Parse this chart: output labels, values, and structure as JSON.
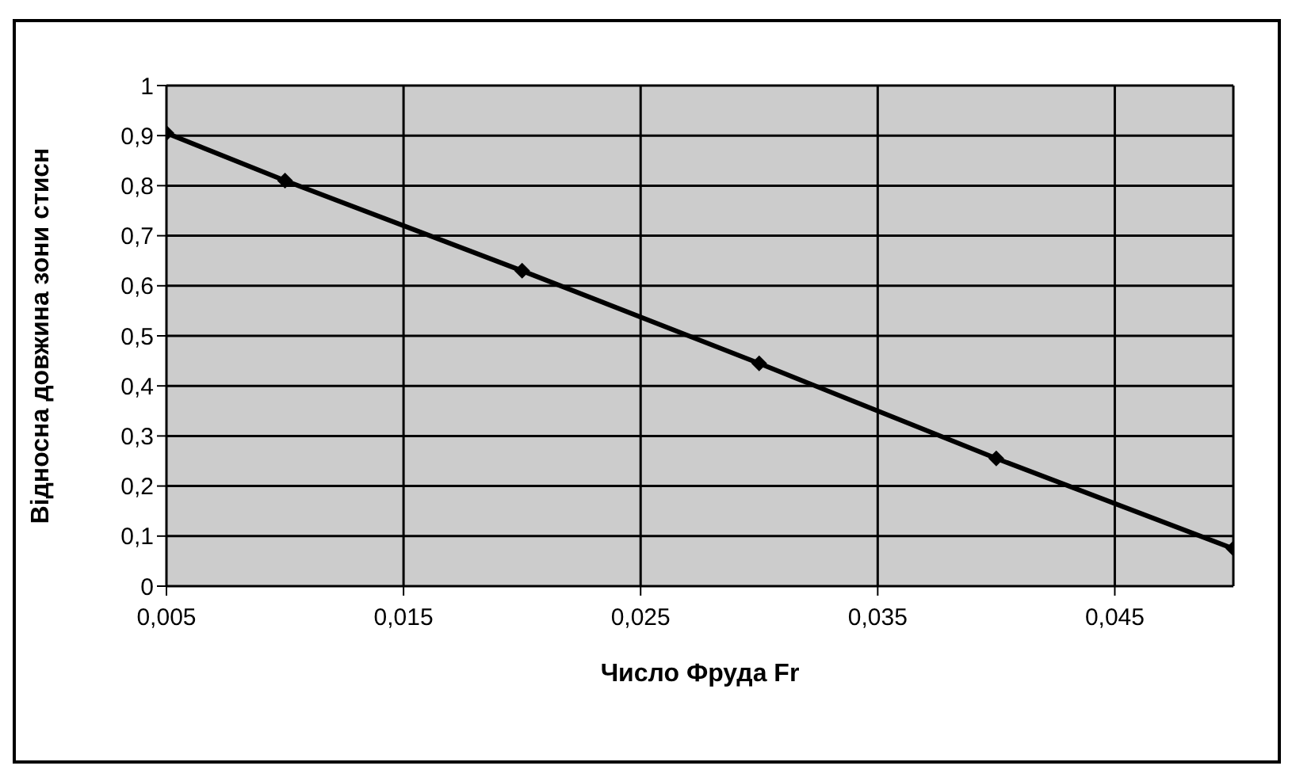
{
  "chart_data": {
    "type": "line",
    "xlabel": "Число Фруда Fr",
    "ylabel": "Відносна довжина зони стисн",
    "x": [
      0.005,
      0.01,
      0.02,
      0.03,
      0.04,
      0.05
    ],
    "series": [
      {
        "color": "#000000",
        "values": [
          0.905,
          0.81,
          0.63,
          0.445,
          0.255,
          0.075
        ]
      }
    ],
    "xlim": [
      0.005,
      0.05
    ],
    "xticks": [
      {
        "value": 0.005,
        "label": "0,005"
      },
      {
        "value": 0.015,
        "label": "0,015"
      },
      {
        "value": 0.025,
        "label": "0,025"
      },
      {
        "value": 0.035,
        "label": "0,035"
      },
      {
        "value": 0.045,
        "label": "0,045"
      }
    ],
    "ylim": [
      0,
      1
    ],
    "yticks": [
      0,
      {
        "value": 0.1,
        "label": "0,1"
      },
      {
        "value": 0.2,
        "label": "0,2"
      },
      {
        "value": 0.3,
        "label": "0,3"
      },
      {
        "value": 0.4,
        "label": "0,4"
      },
      {
        "value": 0.5,
        "label": "0,5"
      },
      {
        "value": 0.6,
        "label": "0,6"
      },
      {
        "value": 0.7,
        "label": "0,7"
      },
      {
        "value": 0.8,
        "label": "0,8"
      },
      {
        "value": 0.9,
        "label": "0,9"
      },
      1
    ],
    "grid": true,
    "marker": "diamond",
    "line_style": "solid"
  }
}
